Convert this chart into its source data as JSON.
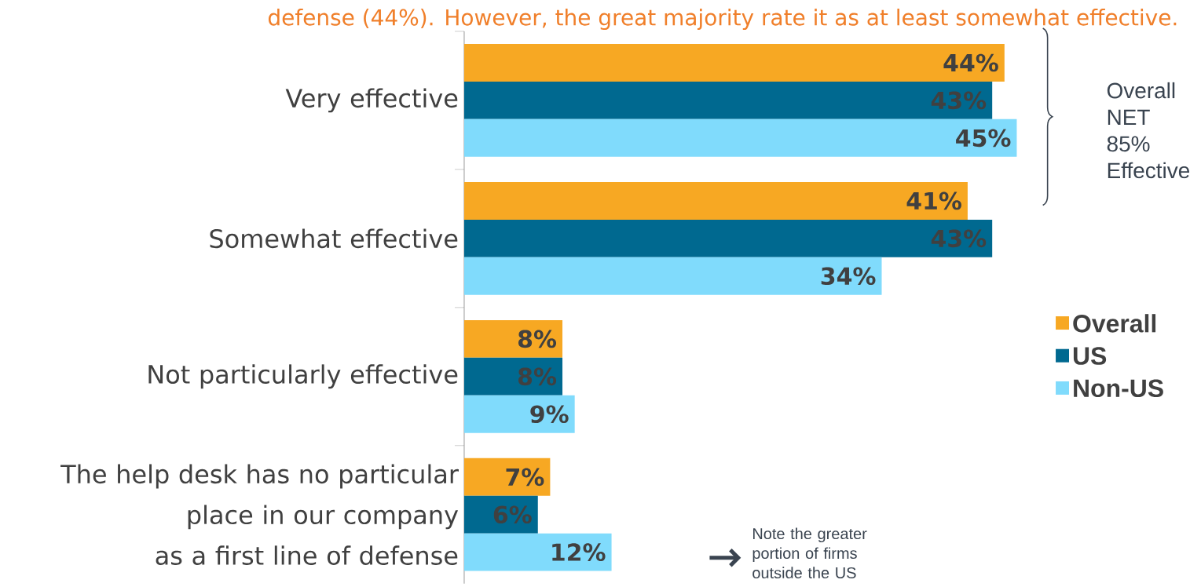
{
  "chart_data": {
    "type": "bar",
    "orientation": "horizontal",
    "subtitle": "defense (44%). However, the great majority rate it as at least somewhat effective.",
    "categories": [
      "Very effective",
      "Somewhat effective",
      "Not particularly effective",
      "The help desk has no particular place in our company as a first line of defense"
    ],
    "series": [
      {
        "name": "Overall",
        "color": "#f7a823",
        "values": [
          44,
          41,
          8,
          7
        ],
        "value_labels": [
          "44%",
          "41%",
          "8%",
          "7%"
        ]
      },
      {
        "name": "US",
        "color": "#006990",
        "values": [
          43,
          43,
          8,
          6
        ],
        "value_labels": [
          "43%",
          "43%",
          "8%",
          "6%"
        ]
      },
      {
        "name": "Non-US",
        "color": "#80dbfc",
        "values": [
          45,
          34,
          9,
          12
        ],
        "value_labels": [
          "45%",
          "34%",
          "9%",
          "12%"
        ]
      }
    ],
    "legend": "right",
    "annotations": [
      "Overall NET 85% Effective",
      "Note the greater portion of firms outside the US"
    ]
  }
}
